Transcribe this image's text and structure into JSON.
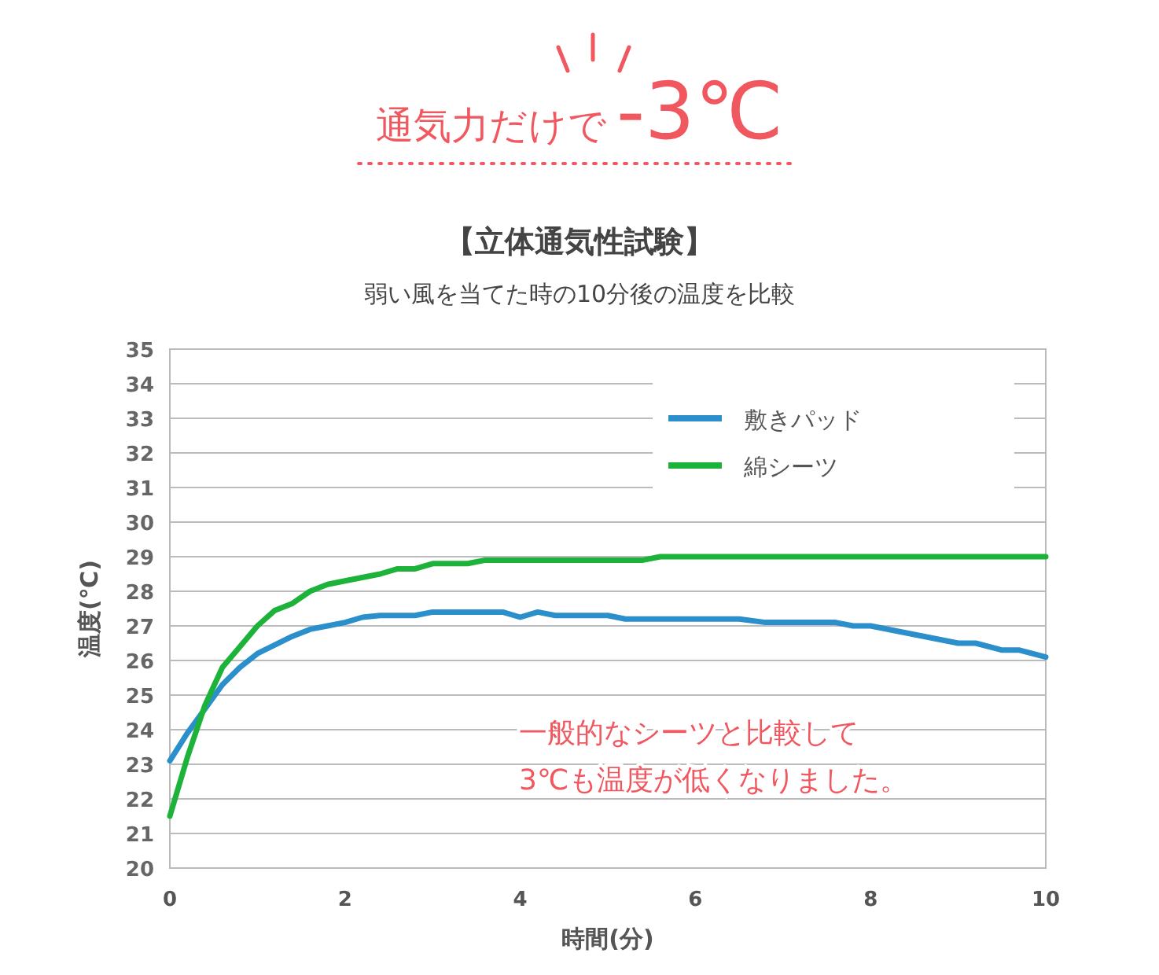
{
  "chart_data": {
    "type": "line",
    "title": "通気力だけで-3℃",
    "subtitle": "【立体通気性試験】",
    "annotations": [
      "弱い風を当てた時の10分後の温度を比較",
      "一般的なシーツと比較して\n3℃も温度が低くなりました。"
    ],
    "xlabel": "時間(分)",
    "ylabel": "温度(℃)",
    "xlim": [
      0,
      10
    ],
    "xticks": [
      0,
      2,
      4,
      6,
      8,
      10
    ],
    "ylim": [
      20,
      35
    ],
    "yticks": [
      20,
      21,
      22,
      23,
      24,
      25,
      26,
      27,
      28,
      29,
      30,
      31,
      32,
      33,
      34,
      35
    ],
    "grid": "y",
    "legend": "top right",
    "line_style": "solid",
    "marker": "none",
    "series": [
      {
        "name": "敷きパッド",
        "color": "#2b8fcb",
        "x": [
          0,
          0.2,
          0.4,
          0.6,
          0.8,
          1.0,
          1.2,
          1.4,
          1.6,
          1.8,
          2.0,
          2.2,
          2.4,
          2.8,
          3.0,
          3.4,
          3.8,
          4.0,
          4.2,
          4.4,
          5.0,
          5.2,
          6.5,
          6.8,
          7.6,
          7.8,
          8.0,
          8.5,
          9.0,
          9.2,
          9.5,
          9.7,
          10
        ],
        "values": [
          23.1,
          23.9,
          24.6,
          25.3,
          25.8,
          26.2,
          26.45,
          26.7,
          26.9,
          27.0,
          27.1,
          27.25,
          27.3,
          27.3,
          27.4,
          27.4,
          27.4,
          27.25,
          27.4,
          27.3,
          27.3,
          27.2,
          27.2,
          27.1,
          27.1,
          27.0,
          27.0,
          26.75,
          26.5,
          26.5,
          26.3,
          26.3,
          26.1
        ]
      },
      {
        "name": "綿シーツ",
        "color": "#1db33a",
        "x": [
          0,
          0.2,
          0.4,
          0.6,
          0.8,
          1.0,
          1.2,
          1.4,
          1.6,
          1.8,
          2.0,
          2.4,
          2.6,
          2.8,
          3.0,
          3.4,
          3.6,
          5.4,
          5.6,
          10
        ],
        "values": [
          21.5,
          23.2,
          24.7,
          25.8,
          26.4,
          27.0,
          27.45,
          27.65,
          28.0,
          28.2,
          28.3,
          28.5,
          28.65,
          28.65,
          28.8,
          28.8,
          28.9,
          28.9,
          29.0,
          29.0
        ]
      }
    ]
  }
}
